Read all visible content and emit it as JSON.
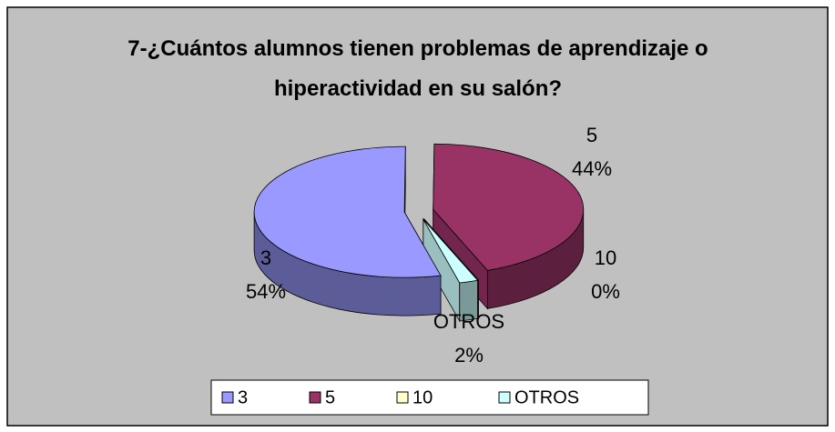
{
  "chart_data": {
    "type": "pie3d",
    "title": "7-¿Cuántos alumnos tienen problemas de aprendizaje o hiperactividad en su salón?",
    "categories": [
      "3",
      "5",
      "10",
      "OTROS"
    ],
    "values": [
      54,
      44,
      0,
      2
    ],
    "value_labels": [
      "54%",
      "44%",
      "0%",
      "2%"
    ],
    "colors": [
      "#9999ff",
      "#993366",
      "#ffffcc",
      "#ccffff"
    ],
    "legend": "bottom"
  }
}
